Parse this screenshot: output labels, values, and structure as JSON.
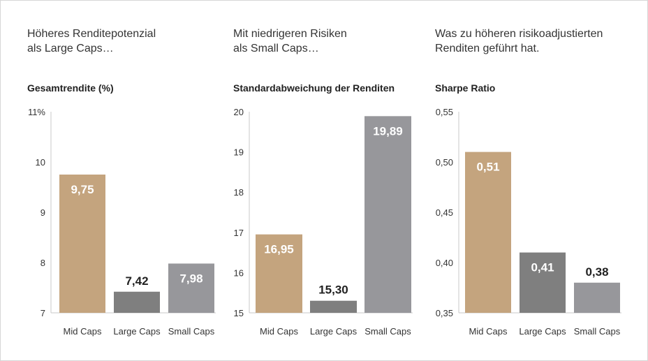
{
  "chart_data": [
    {
      "type": "bar",
      "heading": "Höheres Renditepotenzial\nals Large Caps…",
      "title": "Gesamtrendite (%)",
      "categories": [
        "Mid Caps",
        "Large Caps",
        "Small Caps"
      ],
      "values": [
        9.75,
        7.42,
        7.98
      ],
      "value_labels": [
        "9,75",
        "7,42",
        "7,98"
      ],
      "ylim": [
        7,
        11
      ],
      "yticks": [
        7,
        8,
        9,
        10,
        11
      ],
      "ytick_labels": [
        "7",
        "8",
        "9",
        "10",
        "11%"
      ],
      "grid": false
    },
    {
      "type": "bar",
      "heading": "Mit niedrigeren Risiken\nals Small Caps…",
      "title": "Standardabweichung der Renditen",
      "categories": [
        "Mid Caps",
        "Large Caps",
        "Small Caps"
      ],
      "values": [
        16.95,
        15.3,
        19.89
      ],
      "value_labels": [
        "16,95",
        "15,30",
        "19,89"
      ],
      "ylim": [
        15,
        20
      ],
      "yticks": [
        15,
        16,
        17,
        18,
        19,
        20
      ],
      "ytick_labels": [
        "15",
        "16",
        "17",
        "18",
        "19",
        "20"
      ],
      "grid": false
    },
    {
      "type": "bar",
      "heading": "Was zu höheren risikoadjustierten\nRenditen geführt hat.",
      "title": "Sharpe Ratio",
      "categories": [
        "Mid Caps",
        "Large Caps",
        "Small Caps"
      ],
      "values": [
        0.51,
        0.41,
        0.38
      ],
      "value_labels": [
        "0,51",
        "0,41",
        "0,38"
      ],
      "ylim": [
        0.35,
        0.55
      ],
      "yticks": [
        0.35,
        0.4,
        0.45,
        0.5,
        0.55
      ],
      "ytick_labels": [
        "0,35",
        "0,40",
        "0,45",
        "0,50",
        "0,55"
      ],
      "grid": false
    }
  ],
  "colors": {
    "bars": [
      "#c4a47e",
      "#7f7f7f",
      "#97979b"
    ],
    "label_inside": "#ffffff",
    "label_outside": "#222222",
    "axis": "#c8c8c8"
  }
}
